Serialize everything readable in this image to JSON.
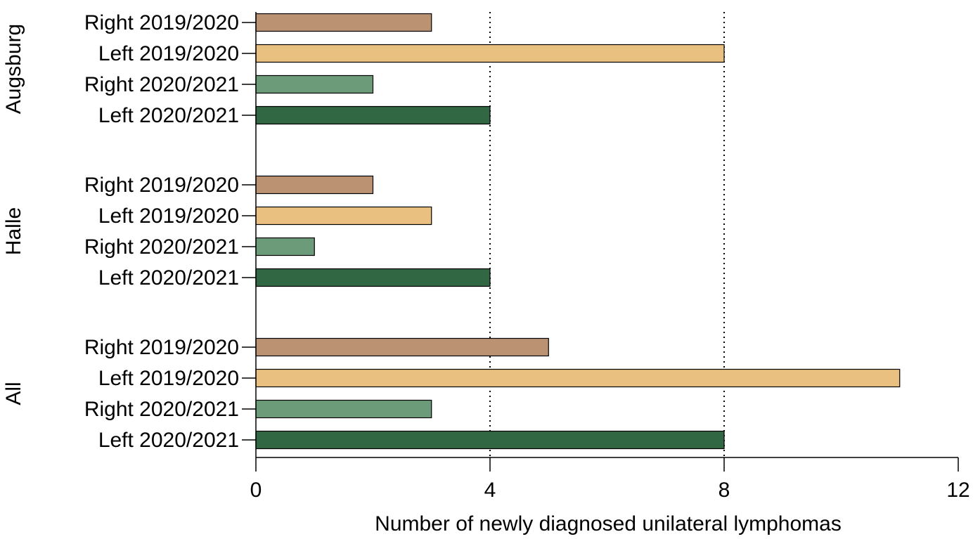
{
  "chart_data": {
    "type": "bar",
    "orientation": "horizontal",
    "xlabel": "Number of newly diagnosed unilateral lymphomas",
    "xlim": [
      0,
      12
    ],
    "xticks": [
      0,
      4,
      8,
      12
    ],
    "reference_lines": [
      4,
      8
    ],
    "groups": [
      {
        "name": "Augsburg",
        "bars": [
          {
            "label": "Right 2019/2020",
            "value": 3,
            "color": "#bb9272"
          },
          {
            "label": "Left 2019/2020",
            "value": 8,
            "color": "#e9c080"
          },
          {
            "label": "Right 2020/2021",
            "value": 2,
            "color": "#6c9b7a"
          },
          {
            "label": "Left 2020/2021",
            "value": 4,
            "color": "#326744"
          }
        ]
      },
      {
        "name": "Halle",
        "bars": [
          {
            "label": "Right 2019/2020",
            "value": 2,
            "color": "#bb9272"
          },
          {
            "label": "Left 2019/2020",
            "value": 3,
            "color": "#e9c080"
          },
          {
            "label": "Right 2020/2021",
            "value": 1,
            "color": "#6c9b7a"
          },
          {
            "label": "Left 2020/2021",
            "value": 4,
            "color": "#326744"
          }
        ]
      },
      {
        "name": "All",
        "bars": [
          {
            "label": "Right 2019/2020",
            "value": 5,
            "color": "#bb9272"
          },
          {
            "label": "Left 2019/2020",
            "value": 11,
            "color": "#e9c080"
          },
          {
            "label": "Right 2020/2021",
            "value": 3,
            "color": "#6c9b7a"
          },
          {
            "label": "Left 2020/2021",
            "value": 8,
            "color": "#326744"
          }
        ]
      }
    ]
  }
}
